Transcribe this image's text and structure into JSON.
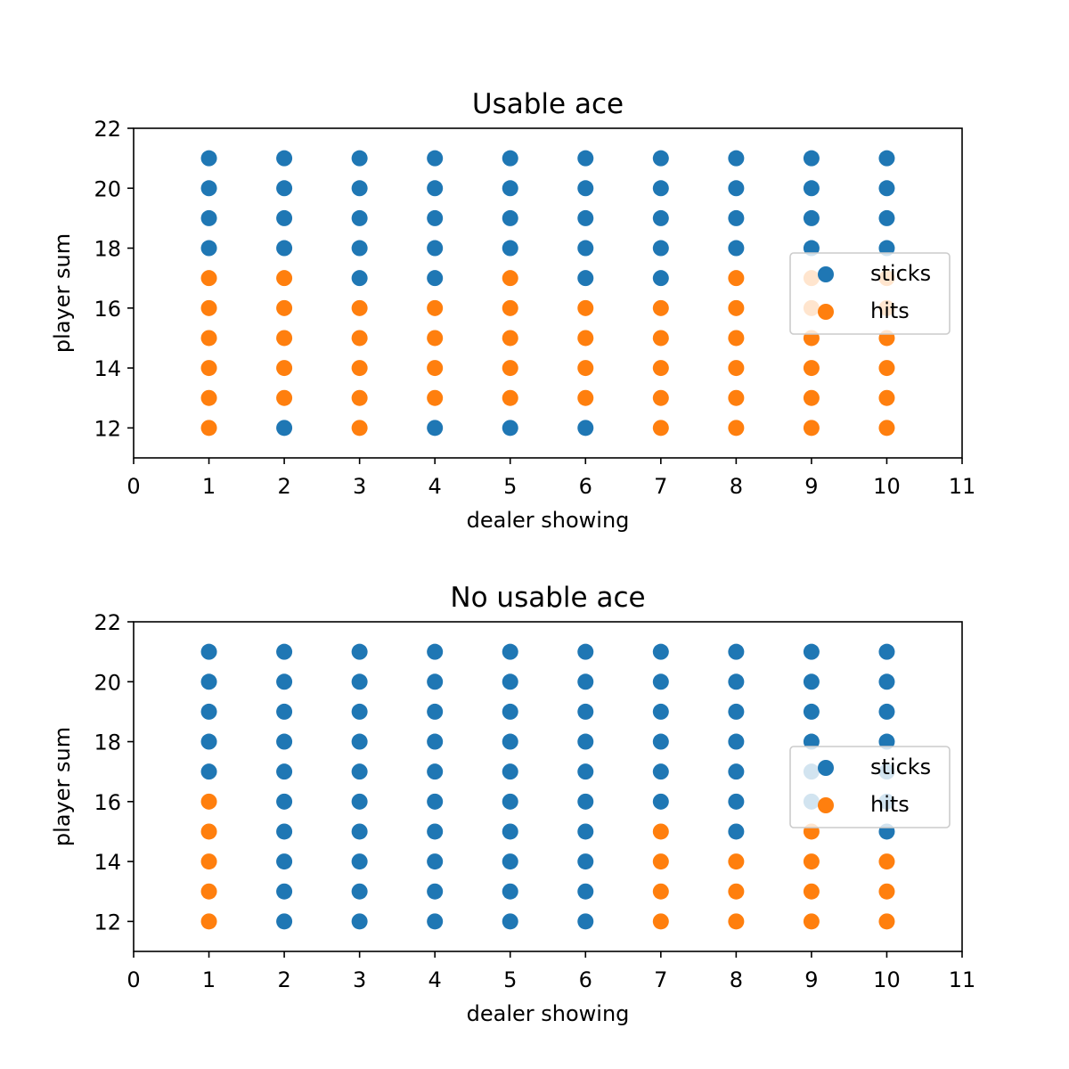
{
  "colors": {
    "sticks": "#1f77b4",
    "hits": "#ff7f0e"
  },
  "chart_data": [
    {
      "type": "scatter",
      "title": "Usable ace",
      "xlabel": "dealer showing",
      "ylabel": "player sum",
      "xlim": [
        0,
        11
      ],
      "ylim": [
        11,
        22
      ],
      "xticks": [
        "0",
        "1",
        "2",
        "3",
        "4",
        "5",
        "6",
        "7",
        "8",
        "9",
        "10",
        "11"
      ],
      "yticks": [
        "12",
        "14",
        "16",
        "18",
        "20",
        "22"
      ],
      "grid": false,
      "legend_position": "center-right",
      "series": [
        {
          "name": "sticks",
          "color": "#1f77b4",
          "points": [
            [
              1,
              18
            ],
            [
              1,
              19
            ],
            [
              1,
              20
            ],
            [
              1,
              21
            ],
            [
              2,
              12
            ],
            [
              2,
              18
            ],
            [
              2,
              19
            ],
            [
              2,
              20
            ],
            [
              2,
              21
            ],
            [
              3,
              17
            ],
            [
              3,
              18
            ],
            [
              3,
              19
            ],
            [
              3,
              20
            ],
            [
              3,
              21
            ],
            [
              4,
              12
            ],
            [
              4,
              17
            ],
            [
              4,
              18
            ],
            [
              4,
              19
            ],
            [
              4,
              20
            ],
            [
              4,
              21
            ],
            [
              5,
              12
            ],
            [
              5,
              18
            ],
            [
              5,
              19
            ],
            [
              5,
              20
            ],
            [
              5,
              21
            ],
            [
              6,
              12
            ],
            [
              6,
              17
            ],
            [
              6,
              18
            ],
            [
              6,
              19
            ],
            [
              6,
              20
            ],
            [
              6,
              21
            ],
            [
              7,
              17
            ],
            [
              7,
              18
            ],
            [
              7,
              19
            ],
            [
              7,
              20
            ],
            [
              7,
              21
            ],
            [
              8,
              18
            ],
            [
              8,
              19
            ],
            [
              8,
              20
            ],
            [
              8,
              21
            ],
            [
              9,
              18
            ],
            [
              9,
              19
            ],
            [
              9,
              20
            ],
            [
              9,
              21
            ],
            [
              10,
              18
            ],
            [
              10,
              19
            ],
            [
              10,
              20
            ],
            [
              10,
              21
            ]
          ]
        },
        {
          "name": "hits",
          "color": "#ff7f0e",
          "points": [
            [
              1,
              12
            ],
            [
              1,
              13
            ],
            [
              1,
              14
            ],
            [
              1,
              15
            ],
            [
              1,
              16
            ],
            [
              1,
              17
            ],
            [
              2,
              13
            ],
            [
              2,
              14
            ],
            [
              2,
              15
            ],
            [
              2,
              16
            ],
            [
              2,
              17
            ],
            [
              3,
              12
            ],
            [
              3,
              13
            ],
            [
              3,
              14
            ],
            [
              3,
              15
            ],
            [
              3,
              16
            ],
            [
              4,
              13
            ],
            [
              4,
              14
            ],
            [
              4,
              15
            ],
            [
              4,
              16
            ],
            [
              5,
              13
            ],
            [
              5,
              14
            ],
            [
              5,
              15
            ],
            [
              5,
              16
            ],
            [
              5,
              17
            ],
            [
              6,
              13
            ],
            [
              6,
              14
            ],
            [
              6,
              15
            ],
            [
              6,
              16
            ],
            [
              7,
              12
            ],
            [
              7,
              13
            ],
            [
              7,
              14
            ],
            [
              7,
              15
            ],
            [
              7,
              16
            ],
            [
              8,
              12
            ],
            [
              8,
              13
            ],
            [
              8,
              14
            ],
            [
              8,
              15
            ],
            [
              8,
              16
            ],
            [
              8,
              17
            ],
            [
              9,
              12
            ],
            [
              9,
              13
            ],
            [
              9,
              14
            ],
            [
              9,
              15
            ],
            [
              9,
              16
            ],
            [
              9,
              17
            ],
            [
              10,
              12
            ],
            [
              10,
              13
            ],
            [
              10,
              14
            ],
            [
              10,
              15
            ],
            [
              10,
              16
            ],
            [
              10,
              17
            ]
          ]
        }
      ]
    },
    {
      "type": "scatter",
      "title": "No usable ace",
      "xlabel": "dealer showing",
      "ylabel": "player sum",
      "xlim": [
        0,
        11
      ],
      "ylim": [
        11,
        22
      ],
      "xticks": [
        "0",
        "1",
        "2",
        "3",
        "4",
        "5",
        "6",
        "7",
        "8",
        "9",
        "10",
        "11"
      ],
      "yticks": [
        "12",
        "14",
        "16",
        "18",
        "20",
        "22"
      ],
      "grid": false,
      "legend_position": "center-right",
      "series": [
        {
          "name": "sticks",
          "color": "#1f77b4",
          "points": [
            [
              1,
              17
            ],
            [
              1,
              18
            ],
            [
              1,
              19
            ],
            [
              1,
              20
            ],
            [
              1,
              21
            ],
            [
              2,
              12
            ],
            [
              2,
              13
            ],
            [
              2,
              14
            ],
            [
              2,
              15
            ],
            [
              2,
              16
            ],
            [
              2,
              17
            ],
            [
              2,
              18
            ],
            [
              2,
              19
            ],
            [
              2,
              20
            ],
            [
              2,
              21
            ],
            [
              3,
              12
            ],
            [
              3,
              13
            ],
            [
              3,
              14
            ],
            [
              3,
              15
            ],
            [
              3,
              16
            ],
            [
              3,
              17
            ],
            [
              3,
              18
            ],
            [
              3,
              19
            ],
            [
              3,
              20
            ],
            [
              3,
              21
            ],
            [
              4,
              12
            ],
            [
              4,
              13
            ],
            [
              4,
              14
            ],
            [
              4,
              15
            ],
            [
              4,
              16
            ],
            [
              4,
              17
            ],
            [
              4,
              18
            ],
            [
              4,
              19
            ],
            [
              4,
              20
            ],
            [
              4,
              21
            ],
            [
              5,
              12
            ],
            [
              5,
              13
            ],
            [
              5,
              14
            ],
            [
              5,
              15
            ],
            [
              5,
              16
            ],
            [
              5,
              17
            ],
            [
              5,
              18
            ],
            [
              5,
              19
            ],
            [
              5,
              20
            ],
            [
              5,
              21
            ],
            [
              6,
              12
            ],
            [
              6,
              13
            ],
            [
              6,
              14
            ],
            [
              6,
              15
            ],
            [
              6,
              16
            ],
            [
              6,
              17
            ],
            [
              6,
              18
            ],
            [
              6,
              19
            ],
            [
              6,
              20
            ],
            [
              6,
              21
            ],
            [
              7,
              16
            ],
            [
              7,
              17
            ],
            [
              7,
              18
            ],
            [
              7,
              19
            ],
            [
              7,
              20
            ],
            [
              7,
              21
            ],
            [
              8,
              15
            ],
            [
              8,
              16
            ],
            [
              8,
              17
            ],
            [
              8,
              18
            ],
            [
              8,
              19
            ],
            [
              8,
              20
            ],
            [
              8,
              21
            ],
            [
              9,
              16
            ],
            [
              9,
              17
            ],
            [
              9,
              18
            ],
            [
              9,
              19
            ],
            [
              9,
              20
            ],
            [
              9,
              21
            ],
            [
              10,
              15
            ],
            [
              10,
              16
            ],
            [
              10,
              17
            ],
            [
              10,
              18
            ],
            [
              10,
              19
            ],
            [
              10,
              20
            ],
            [
              10,
              21
            ]
          ]
        },
        {
          "name": "hits",
          "color": "#ff7f0e",
          "points": [
            [
              1,
              12
            ],
            [
              1,
              13
            ],
            [
              1,
              14
            ],
            [
              1,
              15
            ],
            [
              1,
              16
            ],
            [
              7,
              12
            ],
            [
              7,
              13
            ],
            [
              7,
              14
            ],
            [
              7,
              15
            ],
            [
              8,
              12
            ],
            [
              8,
              13
            ],
            [
              8,
              14
            ],
            [
              9,
              12
            ],
            [
              9,
              13
            ],
            [
              9,
              14
            ],
            [
              9,
              15
            ],
            [
              10,
              12
            ],
            [
              10,
              13
            ],
            [
              10,
              14
            ]
          ]
        }
      ]
    }
  ]
}
